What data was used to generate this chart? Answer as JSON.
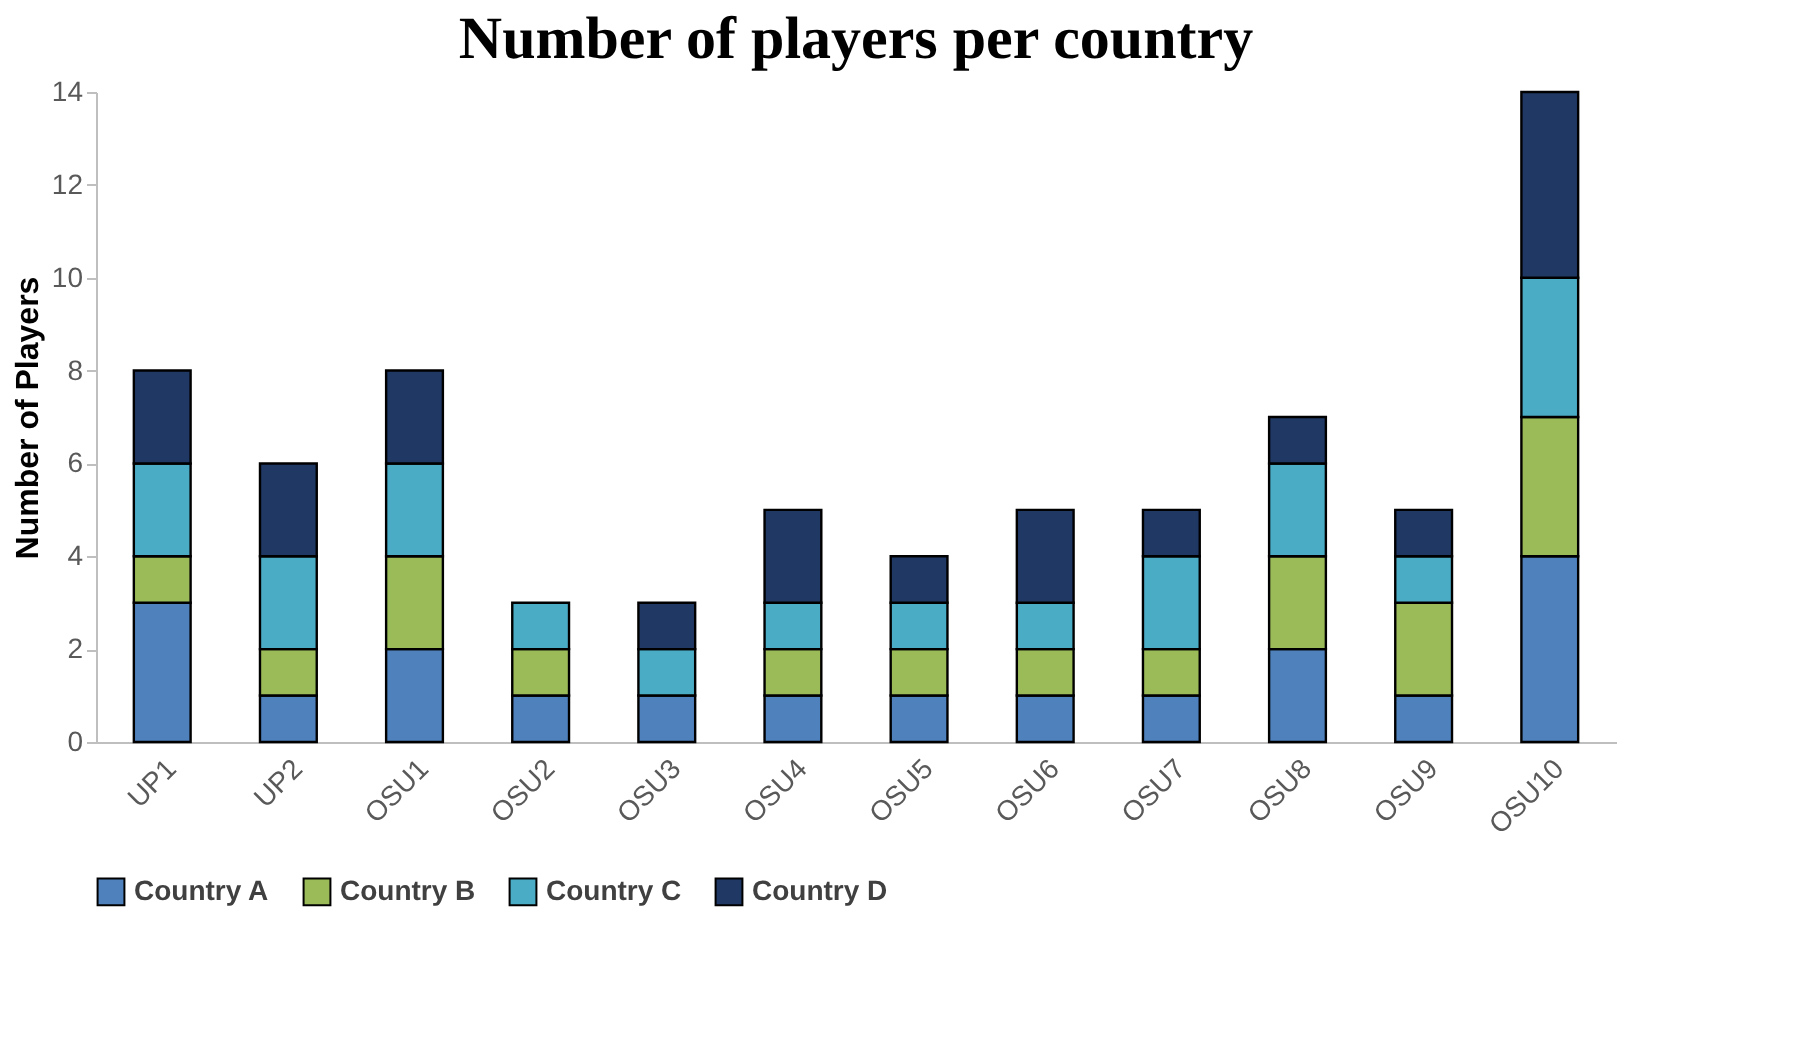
{
  "chart_data": {
    "type": "bar",
    "title": "Number of players per country",
    "ylabel": "Number of Players",
    "categories": [
      "UP1",
      "UP2",
      "OSU1",
      "OSU2",
      "OSU3",
      "OSU4",
      "OSU5",
      "OSU6",
      "OSU7",
      "OSU8",
      "OSU9",
      "OSU10"
    ],
    "stacked": true,
    "series": [
      {
        "name": "Country A",
        "color": "#4f81bd",
        "values": [
          3,
          1,
          2,
          1,
          1,
          1,
          1,
          1,
          1,
          2,
          1,
          4
        ]
      },
      {
        "name": "Country B",
        "color": "#9bbb59",
        "values": [
          1,
          1,
          2,
          1,
          0,
          1,
          1,
          1,
          1,
          2,
          2,
          3
        ]
      },
      {
        "name": "Country C",
        "color": "#4bacc6",
        "values": [
          2,
          2,
          2,
          1,
          1,
          1,
          1,
          1,
          2,
          2,
          1,
          3
        ]
      },
      {
        "name": "Country D",
        "color": "#1f3864",
        "values": [
          2,
          2,
          2,
          0,
          1,
          2,
          1,
          2,
          1,
          1,
          1,
          4
        ]
      }
    ],
    "ylim": [
      0,
      14
    ],
    "yticks": [
      0,
      2,
      4,
      6,
      8,
      10,
      12,
      14
    ],
    "grid": false,
    "legend": "bottom"
  }
}
